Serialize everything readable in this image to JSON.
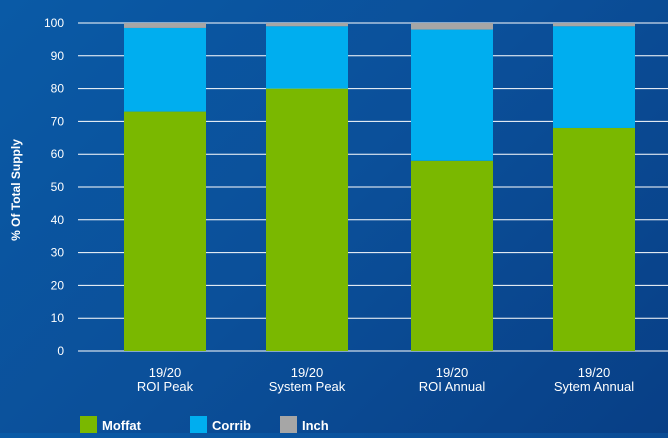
{
  "chart_data": {
    "type": "bar",
    "stacked": true,
    "categories": [
      [
        "19/20",
        "ROI Peak"
      ],
      [
        "19/20",
        "System Peak"
      ],
      [
        "19/20",
        "ROI Annual"
      ],
      [
        "19/20",
        "Sytem Annual"
      ]
    ],
    "series": [
      {
        "name": "Moffat",
        "color": "#7ab800",
        "values": [
          73,
          80,
          58,
          68
        ]
      },
      {
        "name": "Corrib",
        "color": "#00aeef",
        "values": [
          25.5,
          19,
          40,
          31
        ]
      },
      {
        "name": "Inch",
        "color": "#a6a6a6",
        "values": [
          1.5,
          1,
          2,
          1
        ]
      }
    ],
    "title": "",
    "xlabel": "",
    "ylabel": "% Of Total Supply",
    "ylim": [
      0,
      100
    ],
    "yticks": [
      "0",
      "10",
      "20",
      "30",
      "40",
      "50",
      "60",
      "70",
      "80",
      "90",
      "100"
    ],
    "grid": true,
    "legend_position": "bottom-left",
    "text_color": "#ffffff",
    "grid_color": "#ffffff"
  }
}
